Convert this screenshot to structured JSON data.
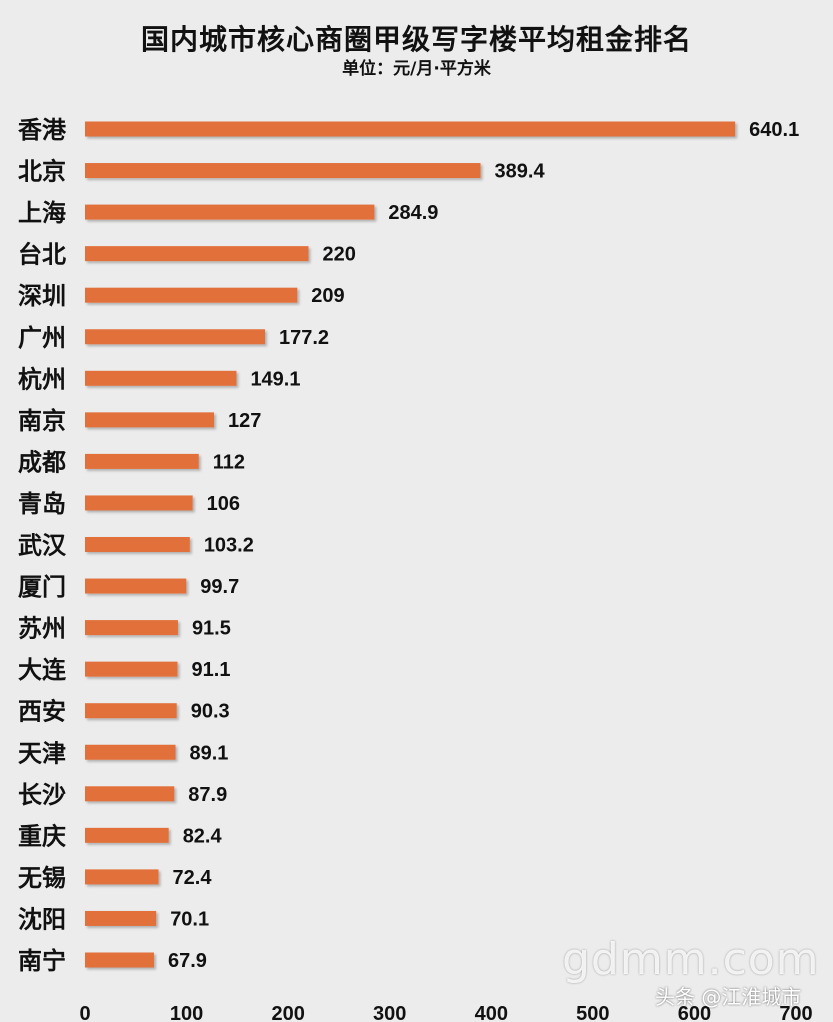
{
  "chart_data": {
    "type": "bar",
    "orientation": "horizontal",
    "title": "国内城市核心商圈甲级写字楼平均租金排名",
    "subtitle": "单位：元/月·平方米",
    "categories": [
      "香港",
      "北京",
      "上海",
      "台北",
      "深圳",
      "广州",
      "杭州",
      "南京",
      "成都",
      "青岛",
      "武汉",
      "厦门",
      "苏州",
      "大连",
      "西安",
      "天津",
      "长沙",
      "重庆",
      "无锡",
      "沈阳",
      "南宁"
    ],
    "values": [
      640.1,
      389.4,
      284.9,
      220,
      209,
      177.2,
      149.1,
      127,
      112,
      106,
      103.2,
      99.7,
      91.5,
      91.1,
      90.3,
      89.1,
      87.9,
      82.4,
      72.4,
      70.1,
      67.9
    ],
    "value_labels": [
      "640.1",
      "389.4",
      "284.9",
      "220",
      "209",
      "177.2",
      "149.1",
      "127",
      "112",
      "106",
      "103.2",
      "99.7",
      "91.5",
      "91.1",
      "90.3",
      "89.1",
      "87.9",
      "82.4",
      "72.4",
      "70.1",
      "67.9"
    ],
    "xlim": [
      0,
      700
    ],
    "x_ticks": [
      "0",
      "100",
      "200",
      "300",
      "400",
      "500",
      "600",
      "700"
    ],
    "grid": false,
    "legend": "none",
    "bar_color": "#e2703a"
  },
  "watermarks": {
    "site": "gdmm.com",
    "source": "头条 @江淮城市"
  }
}
